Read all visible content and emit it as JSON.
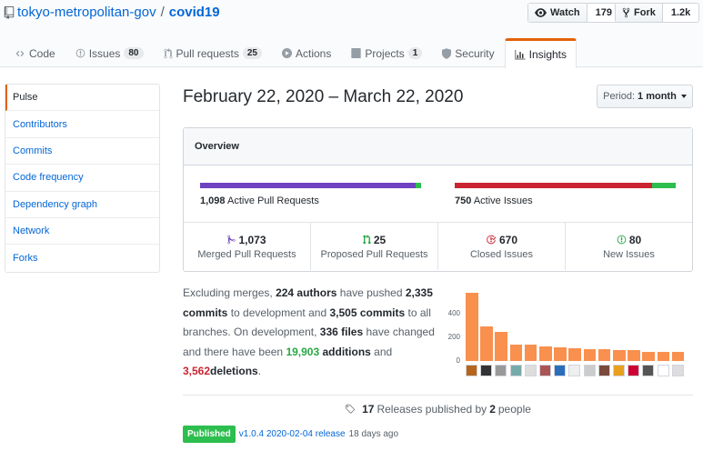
{
  "repo": {
    "owner": "tokyo-metropolitan-gov",
    "separator": "/",
    "name": "covid19"
  },
  "social": {
    "watch": {
      "label": "Watch",
      "count": "179"
    },
    "fork": {
      "label": "Fork",
      "count": "1.2k"
    }
  },
  "tabs": [
    {
      "label": "Code",
      "icon": "code-icon"
    },
    {
      "label": "Issues",
      "count": "80",
      "icon": "issue-icon"
    },
    {
      "label": "Pull requests",
      "count": "25",
      "icon": "pull-request-icon"
    },
    {
      "label": "Actions",
      "icon": "play-icon"
    },
    {
      "label": "Projects",
      "count": "1",
      "icon": "project-icon"
    },
    {
      "label": "Security",
      "icon": "shield-icon"
    },
    {
      "label": "Insights",
      "icon": "graph-icon",
      "selected": true
    }
  ],
  "menu": [
    "Pulse",
    "Contributors",
    "Commits",
    "Code frequency",
    "Dependency graph",
    "Network",
    "Forks"
  ],
  "date_range": "February 22, 2020 – March 22, 2020",
  "period": {
    "label": "Period:",
    "value": "1 month"
  },
  "overview": {
    "title": "Overview",
    "pull_requests": {
      "count": "1,098",
      "label": "Active Pull Requests",
      "merged_fraction": 0.975,
      "open_fraction": 0.025
    },
    "issues": {
      "count": "750",
      "label": "Active Issues",
      "closed_fraction": 0.893,
      "open_fraction": 0.107
    },
    "stats": [
      {
        "num": "1,073",
        "label": "Merged Pull Requests",
        "icon": "merge-icon",
        "color": "#6f42c1"
      },
      {
        "num": "25",
        "label": "Proposed Pull Requests",
        "icon": "pr-open-icon",
        "color": "#28a745"
      },
      {
        "num": "670",
        "label": "Closed Issues",
        "icon": "issue-closed-icon",
        "color": "#cb2431"
      },
      {
        "num": "80",
        "label": "New Issues",
        "icon": "issue-opened-icon",
        "color": "#28a745"
      }
    ]
  },
  "summary": {
    "t1": "Excluding merges,",
    "authors": "224 authors",
    "t2": "have pushed",
    "commits_dev": "2,335 commits",
    "t3": "to development and",
    "commits_all": "3,505 commits",
    "t4": "to all branches. On development,",
    "files": "336 files",
    "t5": "have changed and there have been",
    "additions": "19,903",
    "additions_word": "additions",
    "t6": "and",
    "deletions": "3,562",
    "deletions_word": "deletions",
    "t7": "."
  },
  "chart_data": {
    "type": "bar",
    "categories": [
      "1",
      "2",
      "3",
      "4",
      "5",
      "6",
      "7",
      "8",
      "9",
      "10",
      "11",
      "12",
      "13",
      "14",
      "15"
    ],
    "values": [
      575,
      290,
      245,
      140,
      135,
      125,
      115,
      105,
      100,
      100,
      95,
      90,
      80,
      75,
      75
    ],
    "ylim": [
      0,
      600
    ],
    "yticks": [
      "0",
      "200",
      "400"
    ],
    "title": "",
    "xlabel": "",
    "ylabel": "",
    "grid": false,
    "color": "#f9904e"
  },
  "releases": {
    "count": "17",
    "text1": "Releases published by",
    "people": "2",
    "text2": "people"
  },
  "release": {
    "badge": "Published",
    "name": "v1.0.4 2020-02-04 release",
    "time": "18 days ago"
  }
}
